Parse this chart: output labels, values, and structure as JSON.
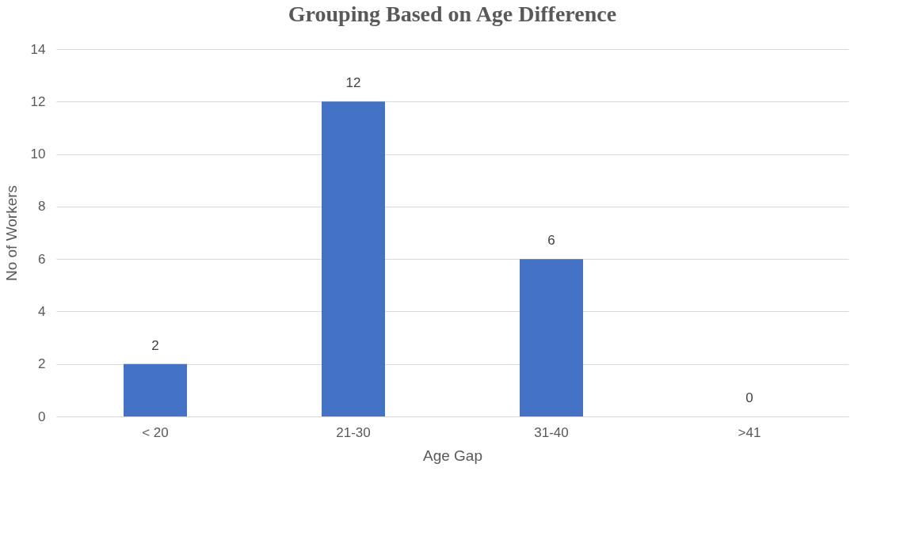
{
  "chart_data": {
    "type": "bar",
    "title": "Grouping Based on Age Difference",
    "xlabel": "Age Gap",
    "ylabel": "No of Workers",
    "categories": [
      "< 20",
      "21-30",
      "31-40",
      ">41"
    ],
    "values": [
      2,
      12,
      6,
      0
    ],
    "color": "#4472c4",
    "ylim": [
      0,
      14
    ],
    "yticks": [
      0,
      2,
      4,
      6,
      8,
      10,
      12,
      14
    ],
    "grid": "y",
    "data_labels": true
  }
}
